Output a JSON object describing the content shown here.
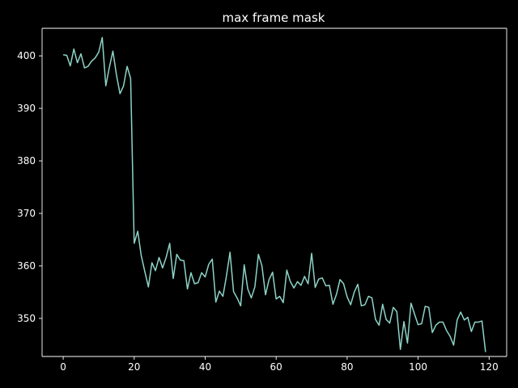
{
  "chart_data": {
    "type": "line",
    "title": "max frame mask",
    "xlabel": "",
    "ylabel": "",
    "xlim": [
      -5.95,
      124.95
    ],
    "ylim": [
      342.75,
      405.25
    ],
    "xticks": [
      0,
      20,
      40,
      60,
      80,
      100,
      120
    ],
    "yticks": [
      350,
      360,
      370,
      380,
      390,
      400
    ],
    "xtick_labels": [
      "0",
      "20",
      "40",
      "60",
      "80",
      "100",
      "120"
    ],
    "ytick_labels": [
      "350",
      "360",
      "370",
      "380",
      "390",
      "400"
    ],
    "grid": false,
    "background": "#000000",
    "line_color": "#8dd3c7",
    "series": [
      {
        "x": [
          0,
          1,
          2,
          3,
          4,
          5,
          6,
          7,
          8,
          9,
          10,
          11,
          12,
          13,
          14,
          15,
          16,
          17,
          18,
          19,
          20,
          21,
          22,
          23,
          24,
          25,
          26,
          27,
          28,
          29,
          30,
          31,
          32,
          33,
          34,
          35,
          36,
          37,
          38,
          39,
          40,
          41,
          42,
          43,
          44,
          45,
          46,
          47,
          48,
          49,
          50,
          51,
          52,
          53,
          54,
          55,
          56,
          57,
          58,
          59,
          60,
          61,
          62,
          63,
          64,
          65,
          66,
          67,
          68,
          69,
          70,
          71,
          72,
          73,
          74,
          75,
          76,
          77,
          78,
          79,
          80,
          81,
          82,
          83,
          84,
          85,
          86,
          87,
          88,
          89,
          90,
          91,
          92,
          93,
          94,
          95,
          96,
          97,
          98,
          99,
          100,
          101,
          102,
          103,
          104,
          105,
          106,
          107,
          108,
          109,
          110,
          111,
          112,
          113,
          114,
          115,
          116,
          117,
          118,
          119
        ],
        "values": [
          400.2,
          400.1,
          398.1,
          401.3,
          398.7,
          400.4,
          397.7,
          398.0,
          399.0,
          399.6,
          400.7,
          403.5,
          394.3,
          397.8,
          400.9,
          396.4,
          392.8,
          394.3,
          398.0,
          395.7,
          364.3,
          366.6,
          361.9,
          358.9,
          356.0,
          360.6,
          359.1,
          361.6,
          359.6,
          361.6,
          364.3,
          357.6,
          362.2,
          361.1,
          361.0,
          355.6,
          358.7,
          356.6,
          356.8,
          358.7,
          357.9,
          360.3,
          361.3,
          353.1,
          355.2,
          354.2,
          358.1,
          362.6,
          355.1,
          353.9,
          352.4,
          360.2,
          355.6,
          353.9,
          356.0,
          362.2,
          360.0,
          354.5,
          357.4,
          358.8,
          353.7,
          354.2,
          353.0,
          359.2,
          357.0,
          355.8,
          357.0,
          356.3,
          358.0,
          356.6,
          362.4,
          355.9,
          357.5,
          357.7,
          356.2,
          356.3,
          352.7,
          354.6,
          357.4,
          356.6,
          354.1,
          352.6,
          355.0,
          356.5,
          352.4,
          352.6,
          354.2,
          353.9,
          349.8,
          348.7,
          352.7,
          349.8,
          349.1,
          352.1,
          351.3,
          344.1,
          349.4,
          345.3,
          352.9,
          350.8,
          348.8,
          349.0,
          352.3,
          352.1,
          347.3,
          348.7,
          349.3,
          349.3,
          347.7,
          346.6,
          344.9,
          349.7,
          351.2,
          349.7,
          350.2,
          347.5,
          349.3,
          349.3,
          349.5,
          343.6
        ]
      }
    ]
  }
}
